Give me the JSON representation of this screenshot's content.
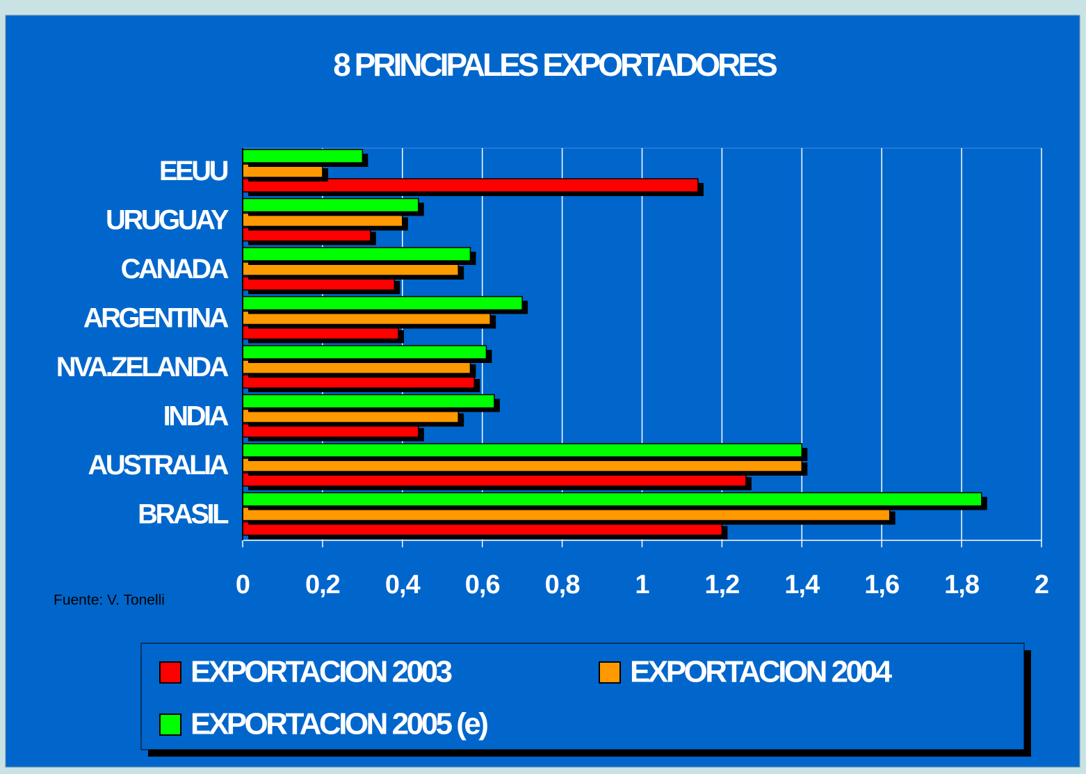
{
  "chart_data": {
    "type": "bar",
    "orientation": "horizontal",
    "title": "8 PRINCIPALES EXPORTADORES",
    "source": "Fuente: V. Tonelli",
    "categories": [
      "EEUU",
      "URUGUAY",
      "CANADA",
      "ARGENTINA",
      "NVA.ZELANDA",
      "INDIA",
      "AUSTRALIA",
      "BRASIL"
    ],
    "series": [
      {
        "name": "EXPORTACION 2003",
        "color": "#ff0000",
        "values": [
          1.14,
          0.32,
          0.38,
          0.39,
          0.58,
          0.44,
          1.26,
          1.2
        ]
      },
      {
        "name": "EXPORTACION 2004",
        "color": "#ff9900",
        "values": [
          0.2,
          0.4,
          0.54,
          0.62,
          0.57,
          0.54,
          1.4,
          1.62
        ]
      },
      {
        "name": "EXPORTACION 2005 (e)",
        "color": "#00ff00",
        "values": [
          0.3,
          0.44,
          0.57,
          0.7,
          0.61,
          0.63,
          1.4,
          1.85
        ]
      }
    ],
    "xlim": [
      0,
      2
    ],
    "xticks": [
      0,
      {
        "value": 0.2,
        "label": "0,2"
      },
      {
        "value": 0.4,
        "label": "0,4"
      },
      {
        "value": 0.6,
        "label": "0,6"
      },
      {
        "value": 0.8,
        "label": "0,8"
      },
      1,
      {
        "value": 1.2,
        "label": "1,2"
      },
      {
        "value": 1.4,
        "label": "1,4"
      },
      {
        "value": 1.6,
        "label": "1,6"
      },
      {
        "value": 1.8,
        "label": "1,8"
      },
      2
    ],
    "grid": true,
    "legend": "bottom"
  }
}
